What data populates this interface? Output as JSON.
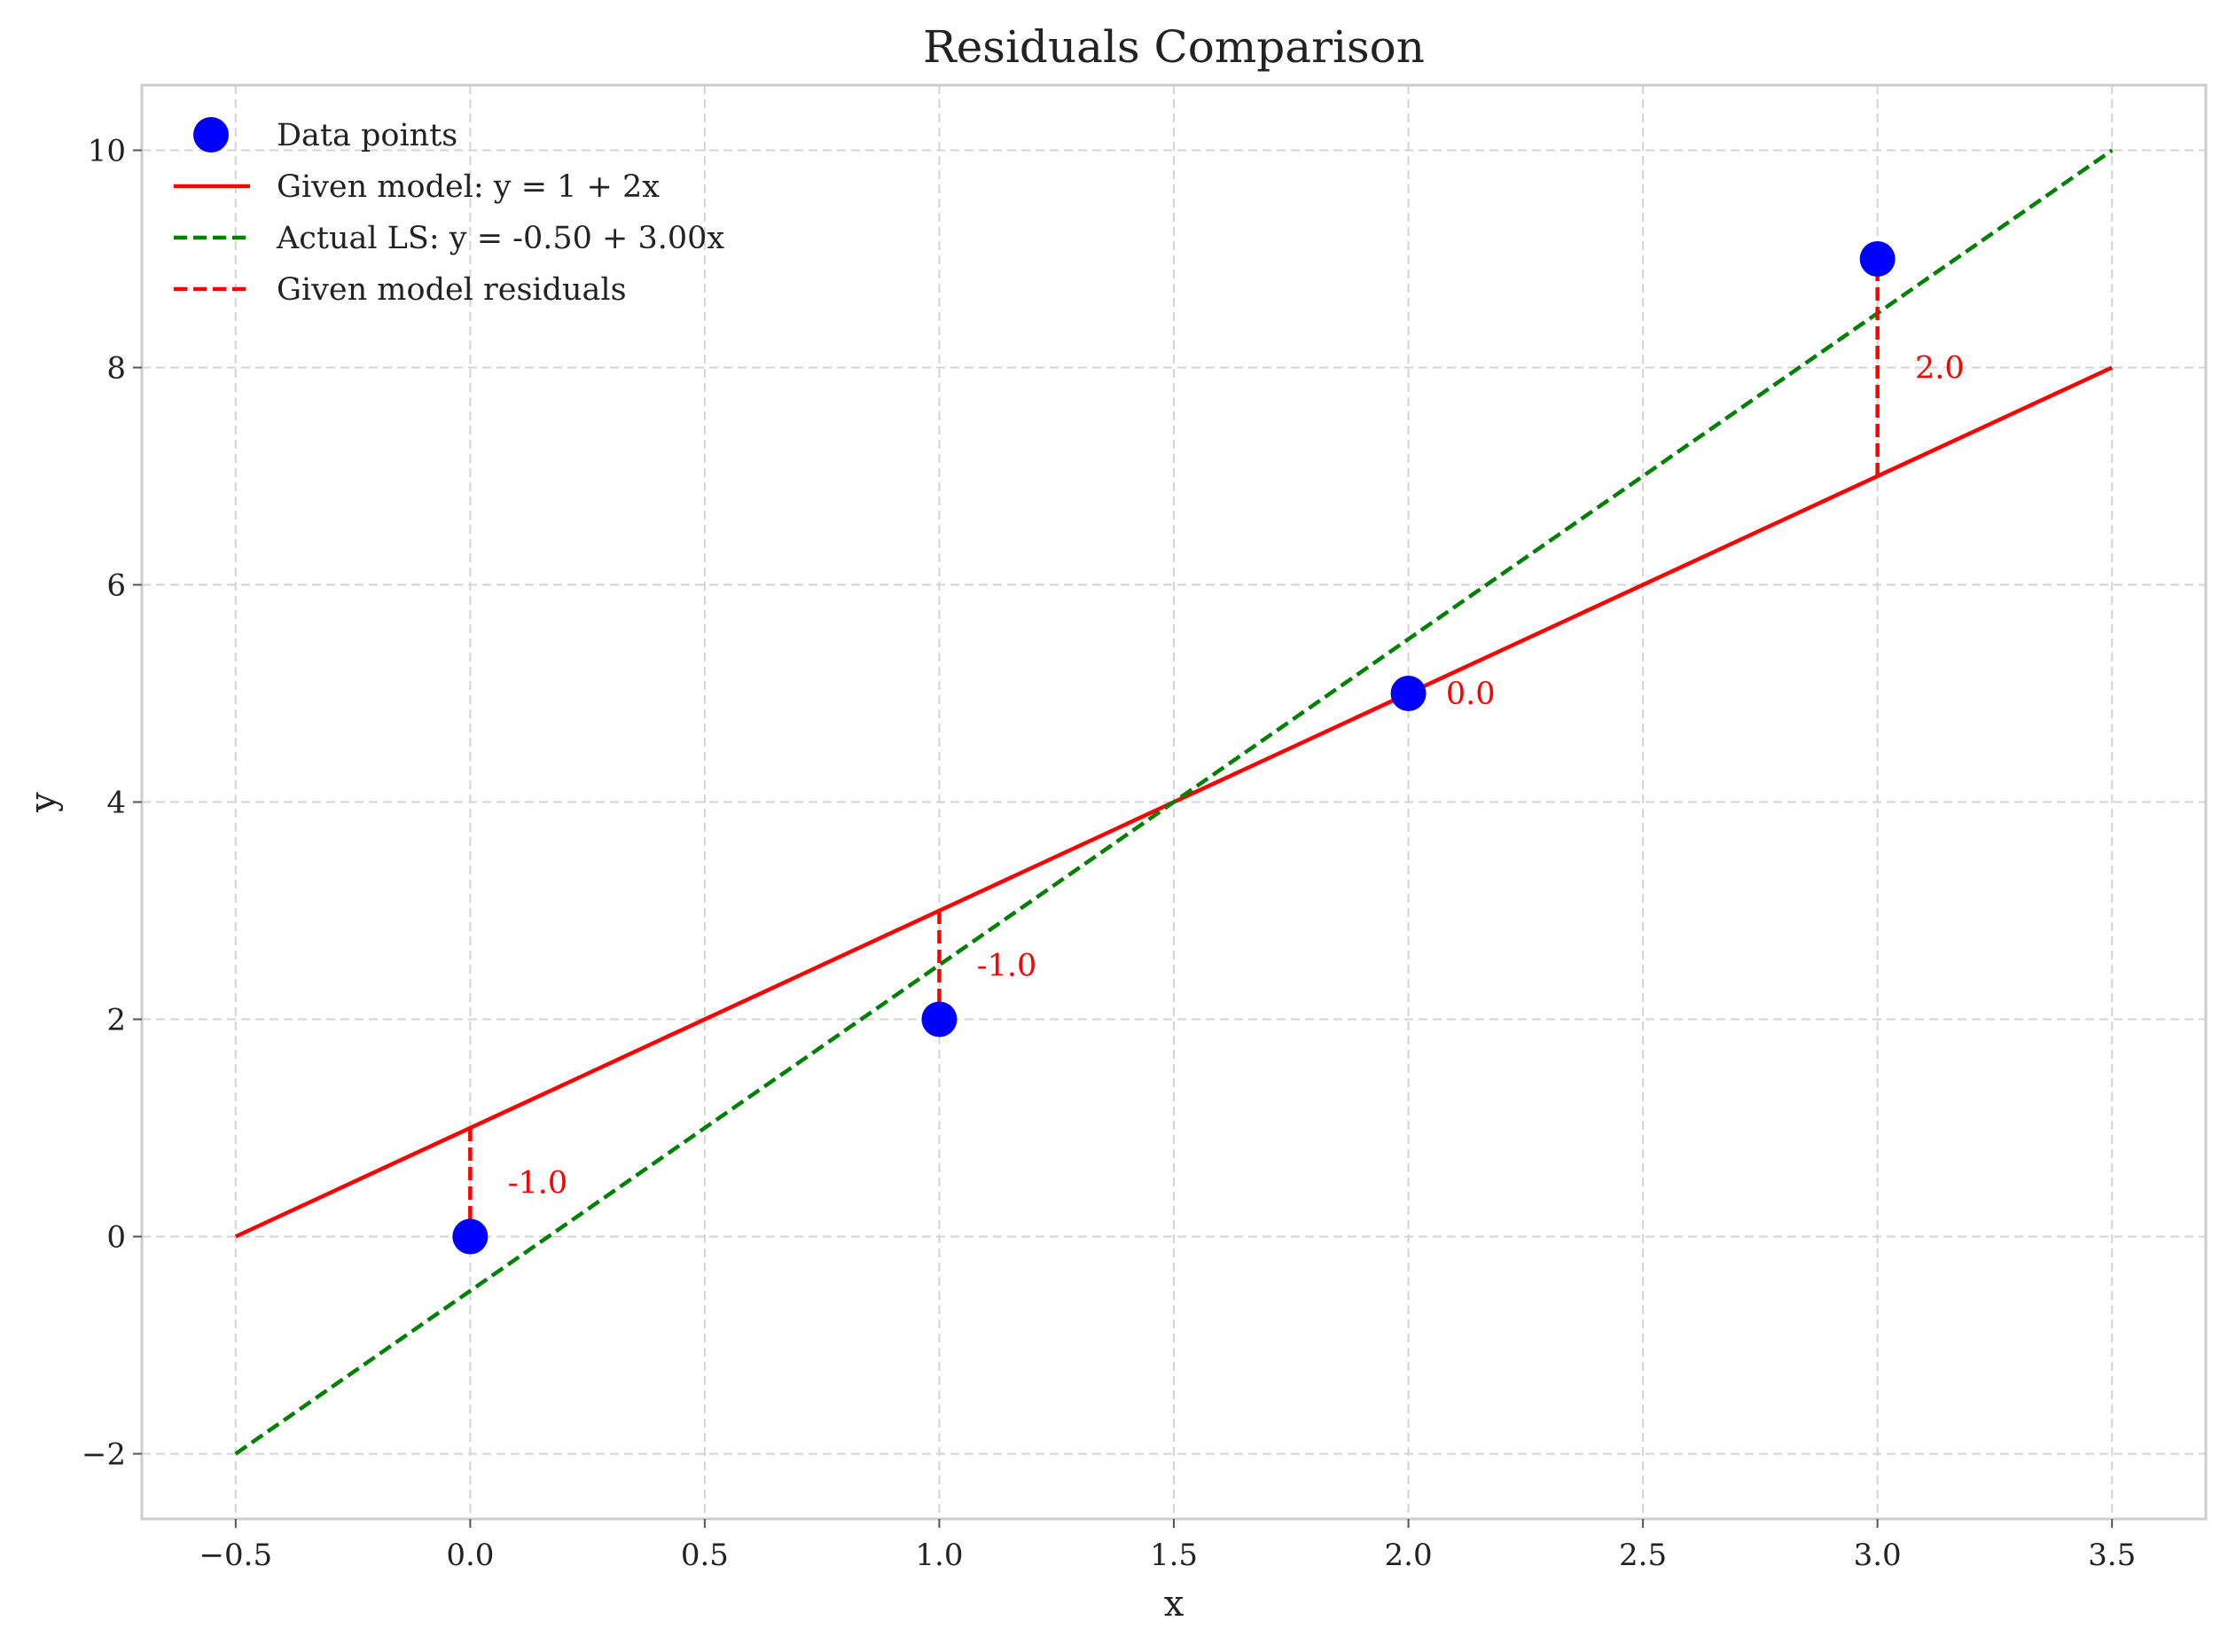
{
  "chart_data": {
    "type": "line",
    "title": "Residuals Comparison",
    "xlabel": "x",
    "ylabel": "y",
    "xlim": [
      -0.7,
      3.7
    ],
    "ylim": [
      -2.6,
      10.6
    ],
    "xticks": [
      -0.5,
      0.0,
      0.5,
      1.0,
      1.5,
      2.0,
      2.5,
      3.0,
      3.5
    ],
    "xtick_labels": [
      "−0.5",
      "0.0",
      "0.5",
      "1.0",
      "1.5",
      "2.0",
      "2.5",
      "3.0",
      "3.5"
    ],
    "yticks": [
      -2,
      0,
      2,
      4,
      6,
      8,
      10
    ],
    "ytick_labels": [
      "−2",
      "0",
      "2",
      "4",
      "6",
      "8",
      "10"
    ],
    "grid": true,
    "legend_position": "top-left",
    "series": [
      {
        "name": "Data points",
        "kind": "scatter",
        "color": "#0000ff",
        "x": [
          0,
          1,
          2,
          3
        ],
        "y": [
          0,
          2,
          5,
          9
        ]
      },
      {
        "name": "Given model: y = 1 + 2x",
        "kind": "line",
        "style": "solid",
        "color": "#ff0000",
        "x": [
          -0.5,
          3.5
        ],
        "y": [
          0,
          8
        ]
      },
      {
        "name": "Actual LS: y = -0.50 + 3.00x",
        "kind": "line",
        "style": "dashed",
        "color": "#008000",
        "x": [
          -0.5,
          3.5
        ],
        "y": [
          -2,
          10
        ]
      },
      {
        "name": "Given model residuals",
        "kind": "residuals",
        "style": "dashed",
        "color": "#ff0000",
        "segments": [
          {
            "x": 0,
            "y_from": 1,
            "y_to": 0
          },
          {
            "x": 1,
            "y_from": 3,
            "y_to": 2
          },
          {
            "x": 2,
            "y_from": 5,
            "y_to": 5
          },
          {
            "x": 3,
            "y_from": 7,
            "y_to": 9
          }
        ]
      }
    ],
    "annotations": [
      {
        "text": "-1.0",
        "x": 0.08,
        "y": 0.5
      },
      {
        "text": "-1.0",
        "x": 1.08,
        "y": 2.5
      },
      {
        "text": "0.0",
        "x": 2.08,
        "y": 5.0
      },
      {
        "text": "2.0",
        "x": 3.08,
        "y": 8.0
      }
    ],
    "annotation_color": "#ff0000"
  }
}
